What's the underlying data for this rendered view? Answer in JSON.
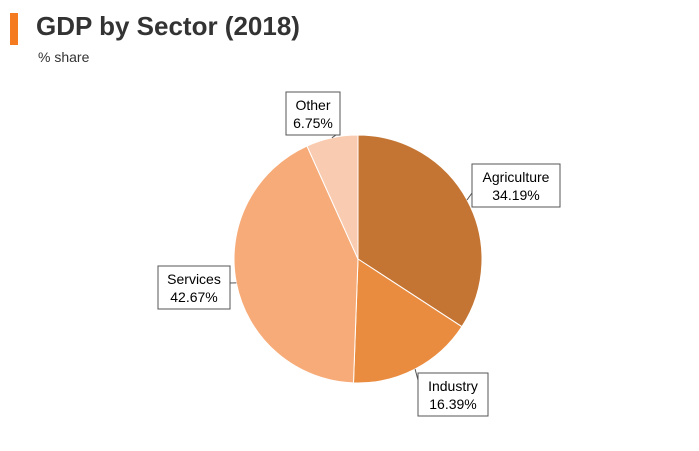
{
  "header": {
    "title": "GDP by Sector (2018)",
    "subtitle": "% share",
    "accent_color": "#f47b20"
  },
  "chart_data": {
    "type": "pie",
    "slices": [
      {
        "name": "Agriculture",
        "value": 34.19,
        "value_label": "34.19%",
        "color": "#c47533"
      },
      {
        "name": "Industry",
        "value": 16.39,
        "value_label": "16.39%",
        "color": "#ea8c40"
      },
      {
        "name": "Services",
        "value": 42.67,
        "value_label": "42.67%",
        "color": "#f7ab78"
      },
      {
        "name": "Other",
        "value": 6.75,
        "value_label": "6.75%",
        "color": "#f9cbb0"
      }
    ]
  }
}
